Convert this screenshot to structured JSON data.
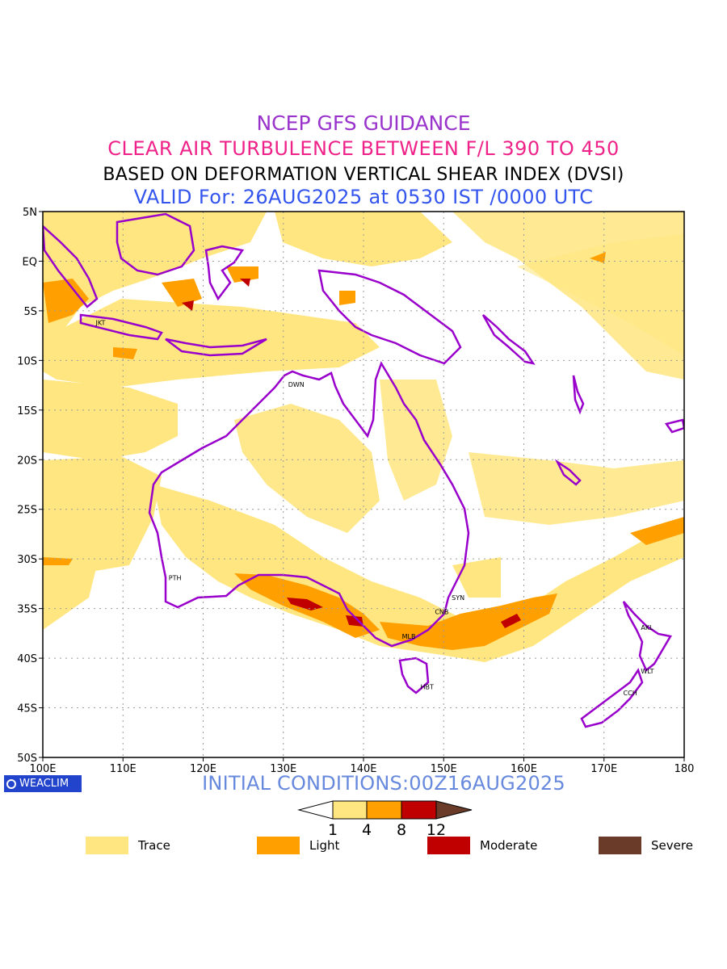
{
  "titles": {
    "line1": "NCEP GFS GUIDANCE",
    "line2": "CLEAR AIR TURBULENCE BETWEEN F/L 390 TO 450",
    "line3": "BASED ON DEFORMATION VERTICAL SHEAR INDEX (DVSI)",
    "line4": "VALID For: 26AUG2025 at 0530 IST /0000 UTC"
  },
  "axes": {
    "lon_labels": [
      "100E",
      "110E",
      "120E",
      "130E",
      "140E",
      "150E",
      "160E",
      "170E",
      "180"
    ],
    "lat_labels": [
      "5N",
      "EQ",
      "5S",
      "10S",
      "15S",
      "20S",
      "25S",
      "30S",
      "35S",
      "40S",
      "45S",
      "50S"
    ],
    "lon_range": [
      100,
      180
    ],
    "lat_range": [
      -50,
      5
    ],
    "grid": "dotted"
  },
  "cities": [
    {
      "code": "JKT",
      "lon": 106.8,
      "lat": -6.2
    },
    {
      "code": "DWN",
      "lon": 130.8,
      "lat": -12.4
    },
    {
      "code": "PTH",
      "lon": 115.9,
      "lat": -31.9
    },
    {
      "code": "SYN",
      "lon": 151.2,
      "lat": -33.9
    },
    {
      "code": "CNB",
      "lon": 149.1,
      "lat": -35.3
    },
    {
      "code": "MLB",
      "lon": 145.0,
      "lat": -37.8
    },
    {
      "code": "HBT",
      "lon": 147.3,
      "lat": -42.9
    },
    {
      "code": "AKL",
      "lon": 174.8,
      "lat": -36.9
    },
    {
      "code": "WLT",
      "lon": 174.8,
      "lat": -41.3
    },
    {
      "code": "CCH",
      "lon": 172.6,
      "lat": -43.5
    }
  ],
  "colorbar": {
    "ticks": [
      "1",
      "4",
      "8",
      "12"
    ],
    "colors": [
      "#ffffff",
      "#ffe680",
      "#ffa000",
      "#c00000",
      "#6b3b2a"
    ]
  },
  "legend": [
    {
      "label": "Trace",
      "color": "#ffe680"
    },
    {
      "label": "Light",
      "color": "#ffa000"
    },
    {
      "label": "Moderate",
      "color": "#c00000"
    },
    {
      "label": "Severe",
      "color": "#6b3b2a"
    }
  ],
  "logo": {
    "text": "WEACLIM"
  },
  "initial_conditions": "INITIAL CONDITIONS:00Z16AUG2025",
  "colors": {
    "coast": "#9900cc",
    "trace": "#ffe680",
    "light": "#ffa000",
    "moderate": "#c00000",
    "severe": "#6b3b2a"
  }
}
